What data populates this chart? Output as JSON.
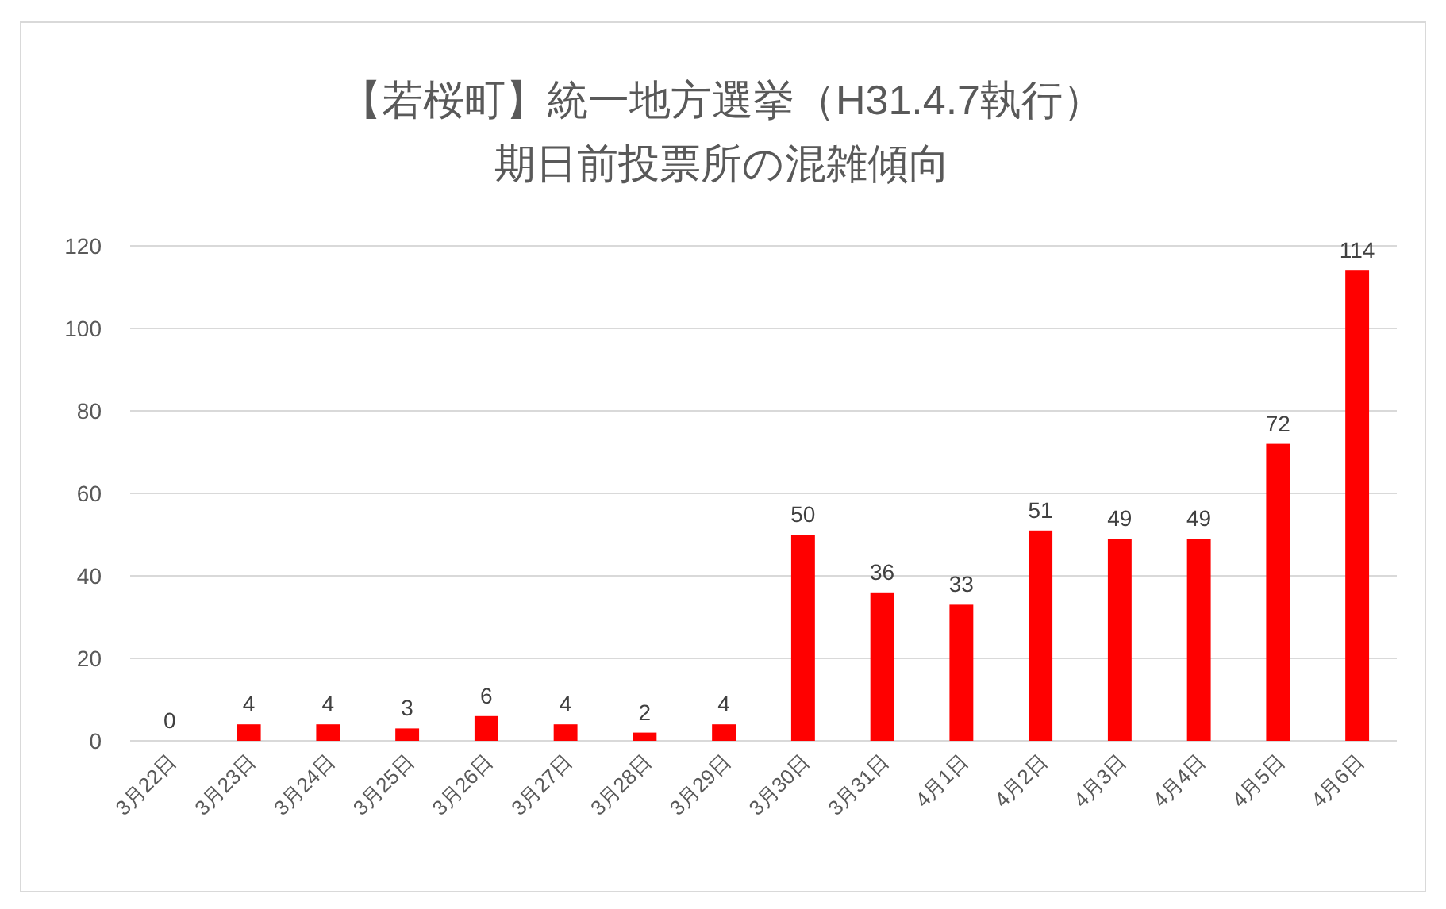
{
  "chart_data": {
    "type": "bar",
    "title": "【若桜町】統一地方選挙（H31.4.7執行）",
    "subtitle": "期日前投票所の混雑傾向",
    "categories": [
      "3月22日",
      "3月23日",
      "3月24日",
      "3月25日",
      "3月26日",
      "3月27日",
      "3月28日",
      "3月29日",
      "3月30日",
      "3月31日",
      "4月1日",
      "4月2日",
      "4月3日",
      "4月4日",
      "4月5日",
      "4月6日"
    ],
    "values": [
      0,
      4,
      4,
      3,
      6,
      4,
      2,
      4,
      50,
      36,
      33,
      51,
      49,
      49,
      72,
      114
    ],
    "color": "#ff0000",
    "ylim": [
      0,
      120
    ],
    "yticks": [
      0,
      20,
      40,
      60,
      80,
      100,
      120
    ],
    "grid": "y",
    "data_labels": true
  }
}
